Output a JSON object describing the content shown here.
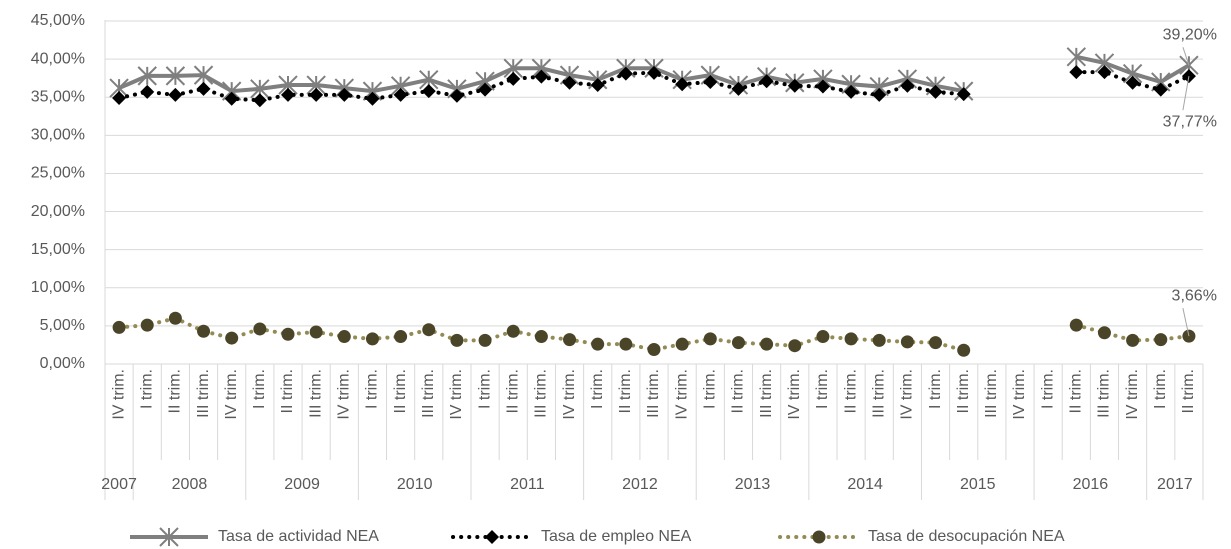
{
  "chart_data": {
    "type": "line",
    "categories": [
      "IV trim.",
      "I trim.",
      "II trim.",
      "III trim.",
      "IV trim.",
      "I trim.",
      "II trim.",
      "III trim.",
      "IV trim.",
      "I trim.",
      "II trim.",
      "III trim.",
      "IV trim.",
      "I trim.",
      "II trim.",
      "III trim.",
      "IV trim.",
      "I trim.",
      "II trim.",
      "III trim.",
      "IV trim.",
      "I trim.",
      "II trim.",
      "III trim.",
      "IV trim.",
      "I trim.",
      "II trim.",
      "III trim.",
      "IV trim.",
      "I trim.",
      "II trim.",
      "III trim.",
      "IV trim.",
      "I trim.",
      "II trim.",
      "III trim.",
      "IV trim.",
      "I trim.",
      "II trim."
    ],
    "year_labels": [
      "2007",
      "2008",
      null,
      null,
      null,
      "2009",
      null,
      null,
      null,
      "2010",
      null,
      null,
      null,
      "2011",
      null,
      null,
      null,
      "2012",
      null,
      null,
      null,
      "2013",
      null,
      null,
      null,
      "2014",
      null,
      null,
      null,
      "2015",
      null,
      null,
      null,
      "2016",
      null,
      null,
      null,
      "2017",
      null
    ],
    "series": [
      {
        "name": "Tasa de actividad NEA",
        "color": "#7f7f7f",
        "marker": "star",
        "marker_color": "#7f7f7f",
        "dash": "solid",
        "values": [
          36.2,
          37.8,
          37.8,
          37.9,
          35.8,
          36.1,
          36.6,
          36.6,
          36.2,
          35.8,
          36.5,
          37.3,
          36.1,
          37.1,
          38.8,
          38.8,
          37.9,
          37.3,
          38.8,
          38.8,
          37.3,
          37.9,
          36.6,
          37.7,
          36.9,
          37.4,
          36.7,
          36.4,
          37.4,
          36.5,
          35.8,
          null,
          null,
          null,
          40.3,
          39.5,
          38.1,
          37.0,
          39.2
        ],
        "value_labels": [
          null,
          null,
          null,
          null,
          null,
          null,
          null,
          null,
          null,
          null,
          null,
          null,
          null,
          null,
          null,
          null,
          null,
          null,
          null,
          null,
          null,
          null,
          null,
          null,
          null,
          null,
          null,
          null,
          null,
          null,
          null,
          null,
          null,
          null,
          null,
          null,
          null,
          null,
          "39,20%"
        ]
      },
      {
        "name": "Tasa de empleo NEA",
        "color": "#000000",
        "marker": "diamond",
        "marker_color": "#000000",
        "dash": "dot",
        "values": [
          34.9,
          35.7,
          35.3,
          36.1,
          34.8,
          34.6,
          35.3,
          35.3,
          35.3,
          34.8,
          35.3,
          35.8,
          35.2,
          36.0,
          37.4,
          37.7,
          36.9,
          36.6,
          38.1,
          38.2,
          36.7,
          37.0,
          36.1,
          37.1,
          36.5,
          36.4,
          35.7,
          35.3,
          36.5,
          35.7,
          35.4,
          null,
          null,
          null,
          38.3,
          38.3,
          36.9,
          36.0,
          37.77
        ],
        "value_labels": [
          null,
          null,
          null,
          null,
          null,
          null,
          null,
          null,
          null,
          null,
          null,
          null,
          null,
          null,
          null,
          null,
          null,
          null,
          null,
          null,
          null,
          null,
          null,
          null,
          null,
          null,
          null,
          null,
          null,
          null,
          null,
          null,
          null,
          null,
          null,
          null,
          null,
          null,
          "37,77%"
        ]
      },
      {
        "name": "Tasa de desocupación NEA",
        "color": "#948a54",
        "marker": "circle",
        "marker_color": "#4a4429",
        "dash": "dot",
        "values": [
          4.8,
          5.1,
          6.0,
          4.3,
          3.4,
          4.6,
          3.9,
          4.2,
          3.6,
          3.3,
          3.6,
          4.5,
          3.1,
          3.1,
          4.3,
          3.6,
          3.2,
          2.6,
          2.6,
          1.9,
          2.6,
          3.3,
          2.8,
          2.6,
          2.4,
          3.6,
          3.3,
          3.1,
          2.9,
          2.8,
          1.8,
          null,
          null,
          null,
          5.1,
          4.1,
          3.1,
          3.2,
          3.66
        ],
        "value_labels": [
          null,
          null,
          null,
          null,
          null,
          null,
          null,
          null,
          null,
          null,
          null,
          null,
          null,
          null,
          null,
          null,
          null,
          null,
          null,
          null,
          null,
          null,
          null,
          null,
          null,
          null,
          null,
          null,
          null,
          null,
          null,
          null,
          null,
          null,
          null,
          null,
          null,
          null,
          "3,66%"
        ]
      }
    ],
    "ylim": [
      0,
      45
    ],
    "yticks": [
      {
        "value": 0,
        "label": "0,00%"
      },
      {
        "value": 5,
        "label": "5,00%"
      },
      {
        "value": 10,
        "label": "10,00%"
      },
      {
        "value": 15,
        "label": "15,00%"
      },
      {
        "value": 20,
        "label": "20,00%"
      },
      {
        "value": 25,
        "label": "25,00%"
      },
      {
        "value": 30,
        "label": "30,00%"
      },
      {
        "value": 35,
        "label": "35,00%"
      },
      {
        "value": 40,
        "label": "40,00%"
      },
      {
        "value": 45,
        "label": "45,00%"
      }
    ],
    "grid": true,
    "legend": "bottom"
  }
}
